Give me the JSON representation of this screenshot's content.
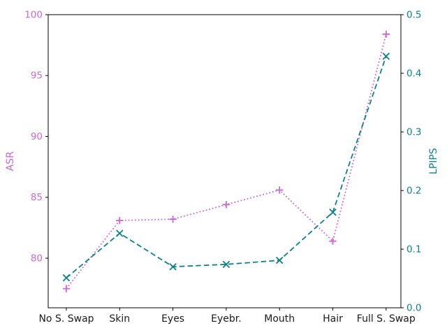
{
  "figure": {
    "background": "#ffffff",
    "spine_color": "#000000",
    "tick_color": "#000000",
    "x_tick_label_color": "#1a1a1a"
  },
  "chart_data": {
    "type": "line",
    "title": "",
    "categories": [
      "No S. Swap",
      "Skin",
      "Eyes",
      "Eyebr.",
      "Mouth",
      "Hair",
      "Full S. Swap"
    ],
    "series": [
      {
        "name": "ASR",
        "axis": "left",
        "color": "#cb68d4",
        "linestyle": "dotted",
        "marker": "plus",
        "values": [
          77.5,
          83.1,
          83.2,
          84.4,
          85.6,
          81.4,
          98.4
        ]
      },
      {
        "name": "LPIPS",
        "axis": "right",
        "color": "#0e8187",
        "linestyle": "dashed",
        "marker": "x",
        "values": [
          0.051,
          0.127,
          0.07,
          0.074,
          0.081,
          0.163,
          0.429
        ]
      }
    ],
    "left_axis": {
      "label": "ASR",
      "color": "#cb68d4",
      "range": [
        75.93,
        100
      ],
      "ticks": [
        80,
        85,
        90,
        95,
        100
      ],
      "tick_labels": [
        "80",
        "85",
        "90",
        "95",
        "100"
      ]
    },
    "right_axis": {
      "label": "LPIPS",
      "color": "#0e8187",
      "range": [
        0,
        0.5
      ],
      "ticks": [
        0,
        0.1,
        0.2,
        0.3,
        0.4,
        0.5
      ],
      "tick_labels": [
        "0.0",
        "0.1",
        "0.2",
        "0.3",
        "0.4",
        "0.5"
      ]
    },
    "grid": false,
    "legend": "none"
  }
}
